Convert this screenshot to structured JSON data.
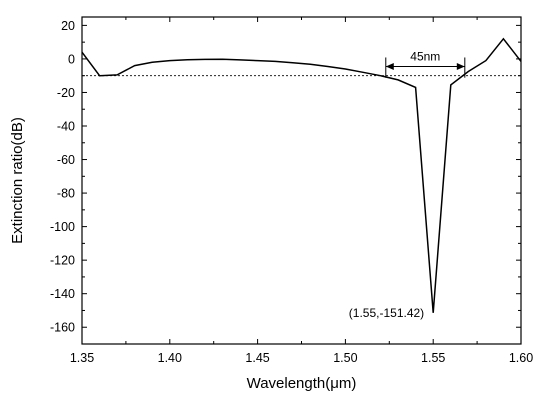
{
  "chart_data": {
    "type": "line",
    "xlabel": "Wavelength(μm)",
    "ylabel": "Extinction ratio(dB)",
    "xlim": [
      1.35,
      1.6
    ],
    "ylim": [
      -170,
      25
    ],
    "xticks": [
      1.35,
      1.4,
      1.45,
      1.5,
      1.55,
      1.6
    ],
    "xtick_labels": [
      "1.35",
      "1.40",
      "1.45",
      "1.50",
      "1.55",
      "1.60"
    ],
    "yticks": [
      20,
      0,
      -20,
      -40,
      -60,
      -80,
      -100,
      -120,
      -140,
      -160
    ],
    "ytick_labels": [
      "20",
      "0",
      "-20",
      "-40",
      "-60",
      "-80",
      "-100",
      "-120",
      "-140",
      "-160"
    ],
    "grid": false,
    "line_color": "#000000",
    "series": [
      {
        "x": [
          1.35,
          1.36,
          1.37,
          1.38,
          1.39,
          1.4,
          1.41,
          1.42,
          1.43,
          1.44,
          1.45,
          1.46,
          1.47,
          1.48,
          1.49,
          1.5,
          1.51,
          1.52,
          1.53,
          1.54,
          1.55,
          1.56,
          1.57,
          1.58,
          1.59,
          1.6
        ],
        "y": [
          4,
          -10,
          -9.5,
          -4,
          -2,
          -1,
          -0.5,
          -0.3,
          -0.2,
          -0.6,
          -1,
          -1.5,
          -2.3,
          -3.2,
          -4.5,
          -6,
          -8,
          -10,
          -12.5,
          -17,
          -151.42,
          -15.5,
          -7.5,
          -1,
          12,
          -1.5
        ]
      }
    ],
    "reference_line": {
      "y": -10,
      "style": "dashed"
    },
    "bandwidth_annotation": {
      "label": "45nm",
      "x_start": 1.523,
      "x_end": 1.568,
      "y": -4.5
    },
    "point_annotation": {
      "label": "(1.55,-151.42)",
      "x": 1.55,
      "y": -151.42
    }
  }
}
